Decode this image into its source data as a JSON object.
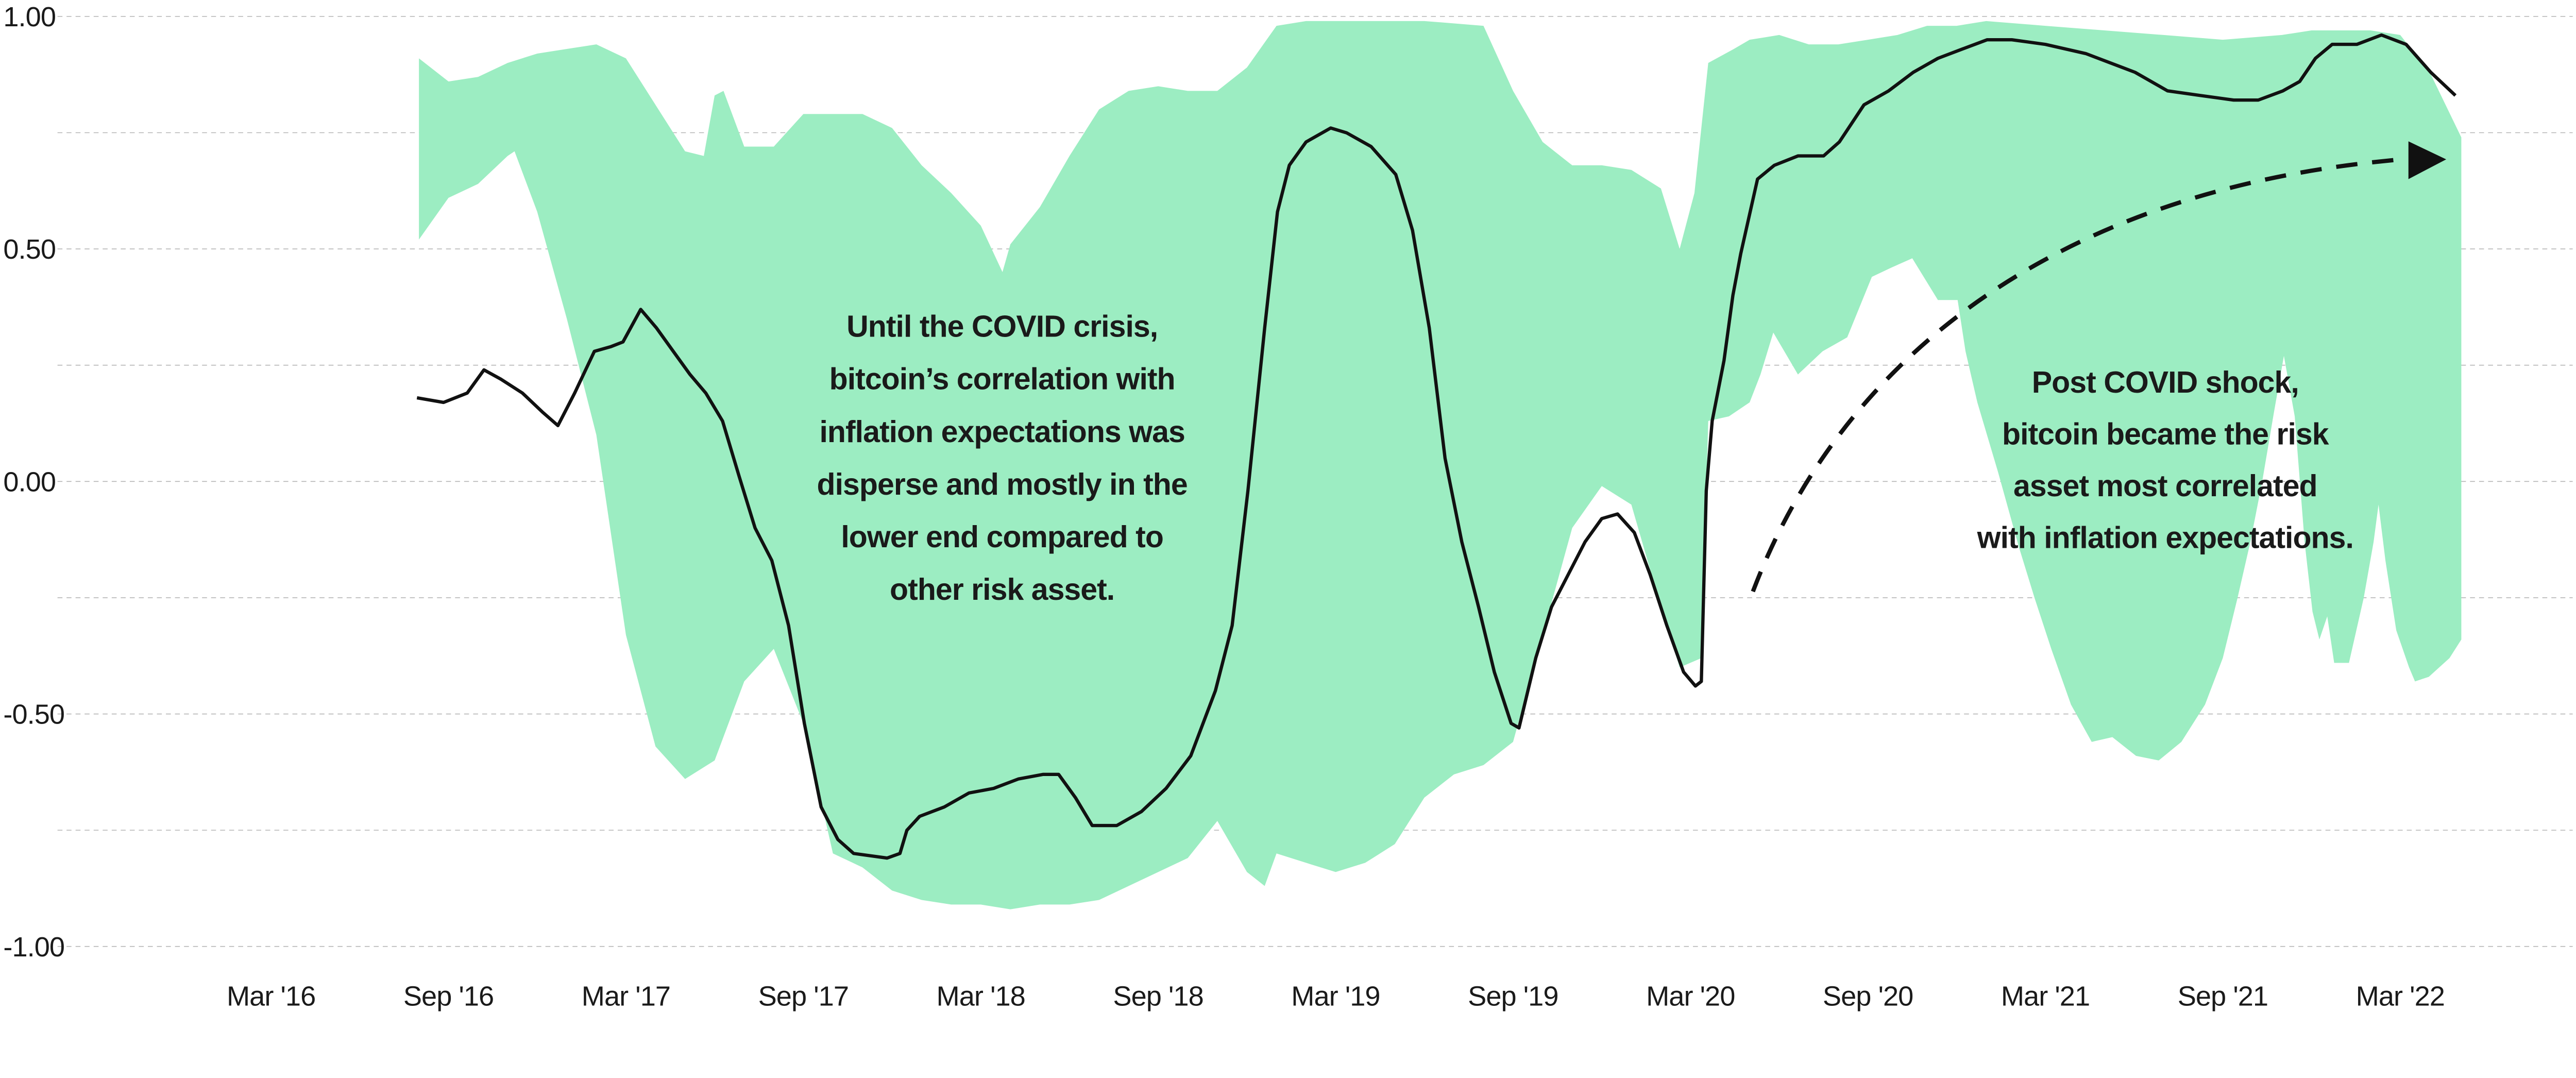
{
  "chart_data": {
    "type": "area",
    "title": "",
    "xlabel": "",
    "ylabel": "",
    "ylim": [
      -1.0,
      1.0
    ],
    "grid": true,
    "y_ticks": [
      "1.00",
      "0.50",
      "0.00",
      "-0.50",
      "-1.00"
    ],
    "y_tick_values": [
      1.0,
      0.5,
      0.0,
      -0.5,
      -1.0
    ],
    "gridline_values": [
      1.0,
      0.75,
      0.5,
      0.25,
      0.0,
      -0.25,
      -0.5,
      -0.75,
      -1.0
    ],
    "x_ticks": [
      "Mar '16",
      "Sep '16",
      "Mar '17",
      "Sep '17",
      "Mar '18",
      "Sep '18",
      "Mar '19",
      "Sep '19",
      "Mar '20",
      "Sep '20",
      "Mar '21",
      "Sep '21",
      "Mar '22"
    ],
    "x_tick_dates": [
      "2016-03-01",
      "2016-09-01",
      "2017-03-01",
      "2017-09-01",
      "2018-03-01",
      "2018-09-01",
      "2019-03-01",
      "2019-09-01",
      "2020-03-01",
      "2020-09-01",
      "2021-03-01",
      "2021-09-01",
      "2022-03-01"
    ],
    "colors": {
      "band": "#9CEDC2",
      "line": "#111111",
      "arrow": "#111111"
    },
    "band": {
      "upper": [
        [
          "2016-08-01",
          0.91
        ],
        [
          "2016-09-01",
          0.86
        ],
        [
          "2016-10-01",
          0.87
        ],
        [
          "2016-11-01",
          0.9
        ],
        [
          "2016-12-01",
          0.92
        ],
        [
          "2017-01-01",
          0.93
        ],
        [
          "2017-02-01",
          0.94
        ],
        [
          "2017-03-01",
          0.91
        ],
        [
          "2017-04-01",
          0.81
        ],
        [
          "2017-05-01",
          0.71
        ],
        [
          "2017-05-20",
          0.7
        ],
        [
          "2017-06-01",
          0.83
        ],
        [
          "2017-06-10",
          0.84
        ],
        [
          "2017-07-01",
          0.72
        ],
        [
          "2017-08-01",
          0.72
        ],
        [
          "2017-09-01",
          0.79
        ],
        [
          "2017-10-01",
          0.79
        ],
        [
          "2017-11-01",
          0.79
        ],
        [
          "2017-12-01",
          0.76
        ],
        [
          "2018-01-01",
          0.68
        ],
        [
          "2018-02-01",
          0.62
        ],
        [
          "2018-03-01",
          0.55
        ],
        [
          "2018-03-23",
          0.45
        ],
        [
          "2018-04-01",
          0.51
        ],
        [
          "2018-05-01",
          0.59
        ],
        [
          "2018-06-01",
          0.7
        ],
        [
          "2018-07-01",
          0.8
        ],
        [
          "2018-08-01",
          0.84
        ],
        [
          "2018-09-01",
          0.85
        ],
        [
          "2018-10-01",
          0.84
        ],
        [
          "2018-11-01",
          0.84
        ],
        [
          "2018-12-01",
          0.89
        ],
        [
          "2019-01-01",
          0.98
        ],
        [
          "2019-02-01",
          0.99
        ],
        [
          "2019-04-01",
          0.99
        ],
        [
          "2019-06-01",
          0.99
        ],
        [
          "2019-08-01",
          0.98
        ],
        [
          "2019-09-01",
          0.84
        ],
        [
          "2019-10-01",
          0.73
        ],
        [
          "2019-11-01",
          0.68
        ],
        [
          "2019-12-01",
          0.68
        ],
        [
          "2020-01-01",
          0.67
        ],
        [
          "2020-02-01",
          0.63
        ],
        [
          "2020-02-20",
          0.5
        ],
        [
          "2020-03-05",
          0.62
        ],
        [
          "2020-03-19",
          0.9
        ],
        [
          "2020-04-15",
          0.93
        ],
        [
          "2020-05-01",
          0.95
        ],
        [
          "2020-06-01",
          0.96
        ],
        [
          "2020-07-01",
          0.94
        ],
        [
          "2020-08-01",
          0.94
        ],
        [
          "2020-09-01",
          0.95
        ],
        [
          "2020-10-01",
          0.96
        ],
        [
          "2020-11-01",
          0.98
        ],
        [
          "2020-12-01",
          0.98
        ],
        [
          "2021-01-01",
          0.99
        ],
        [
          "2021-03-01",
          0.98
        ],
        [
          "2021-05-01",
          0.97
        ],
        [
          "2021-07-01",
          0.96
        ],
        [
          "2021-09-01",
          0.95
        ],
        [
          "2021-11-01",
          0.96
        ],
        [
          "2021-12-01",
          0.97
        ],
        [
          "2022-01-01",
          0.97
        ],
        [
          "2022-02-01",
          0.97
        ],
        [
          "2022-03-01",
          0.96
        ],
        [
          "2022-04-01",
          0.88
        ],
        [
          "2022-05-03",
          0.74
        ]
      ],
      "lower": [
        [
          "2016-08-01",
          0.52
        ],
        [
          "2016-09-01",
          0.61
        ],
        [
          "2016-10-01",
          0.64
        ],
        [
          "2016-11-01",
          0.7
        ],
        [
          "2016-11-08",
          0.71
        ],
        [
          "2016-12-01",
          0.58
        ],
        [
          "2017-01-01",
          0.35
        ],
        [
          "2017-02-01",
          0.1
        ],
        [
          "2017-03-01",
          -0.33
        ],
        [
          "2017-04-01",
          -0.57
        ],
        [
          "2017-05-01",
          -0.64
        ],
        [
          "2017-06-01",
          -0.6
        ],
        [
          "2017-07-01",
          -0.43
        ],
        [
          "2017-08-01",
          -0.36
        ],
        [
          "2017-09-01",
          -0.52
        ],
        [
          "2017-10-01",
          -0.8
        ],
        [
          "2017-11-01",
          -0.83
        ],
        [
          "2017-12-01",
          -0.88
        ],
        [
          "2018-01-01",
          -0.9
        ],
        [
          "2018-02-01",
          -0.91
        ],
        [
          "2018-03-01",
          -0.91
        ],
        [
          "2018-04-01",
          -0.92
        ],
        [
          "2018-05-01",
          -0.91
        ],
        [
          "2018-06-01",
          -0.91
        ],
        [
          "2018-07-01",
          -0.9
        ],
        [
          "2018-08-01",
          -0.87
        ],
        [
          "2018-09-01",
          -0.84
        ],
        [
          "2018-10-01",
          -0.81
        ],
        [
          "2018-11-01",
          -0.73
        ],
        [
          "2018-12-01",
          -0.84
        ],
        [
          "2018-12-19",
          -0.87
        ],
        [
          "2019-01-01",
          -0.8
        ],
        [
          "2019-02-01",
          -0.82
        ],
        [
          "2019-03-01",
          -0.84
        ],
        [
          "2019-04-01",
          -0.82
        ],
        [
          "2019-05-01",
          -0.78
        ],
        [
          "2019-06-01",
          -0.68
        ],
        [
          "2019-07-01",
          -0.63
        ],
        [
          "2019-08-01",
          -0.61
        ],
        [
          "2019-09-01",
          -0.56
        ],
        [
          "2019-10-01",
          -0.33
        ],
        [
          "2019-11-01",
          -0.1
        ],
        [
          "2019-12-01",
          -0.01
        ],
        [
          "2020-01-01",
          -0.05
        ],
        [
          "2020-02-01",
          -0.27
        ],
        [
          "2020-02-20",
          -0.4
        ],
        [
          "2020-03-12",
          -0.38
        ],
        [
          "2020-03-19",
          0.13
        ],
        [
          "2020-04-10",
          0.14
        ],
        [
          "2020-05-01",
          0.17
        ],
        [
          "2020-05-12",
          0.23
        ],
        [
          "2020-05-25",
          0.32
        ],
        [
          "2020-06-20",
          0.23
        ],
        [
          "2020-07-15",
          0.28
        ],
        [
          "2020-08-10",
          0.31
        ],
        [
          "2020-09-05",
          0.44
        ],
        [
          "2020-09-25",
          0.46
        ],
        [
          "2020-10-16",
          0.48
        ],
        [
          "2020-11-12",
          0.39
        ],
        [
          "2020-12-02",
          0.39
        ],
        [
          "2020-12-10",
          0.28
        ],
        [
          "2020-12-22",
          0.17
        ],
        [
          "2021-01-13",
          0.02
        ],
        [
          "2021-02-04",
          -0.14
        ],
        [
          "2021-02-20",
          -0.25
        ],
        [
          "2021-03-07",
          -0.36
        ],
        [
          "2021-03-27",
          -0.48
        ],
        [
          "2021-04-18",
          -0.56
        ],
        [
          "2021-05-09",
          -0.55
        ],
        [
          "2021-06-03",
          -0.59
        ],
        [
          "2021-06-26",
          -0.6
        ],
        [
          "2021-07-19",
          -0.56
        ],
        [
          "2021-08-13",
          -0.48
        ],
        [
          "2021-09-01",
          -0.38
        ],
        [
          "2021-09-16",
          -0.25
        ],
        [
          "2021-09-29",
          -0.13
        ],
        [
          "2021-10-11",
          0.0
        ],
        [
          "2021-10-23",
          0.15
        ],
        [
          "2021-11-03",
          0.27
        ],
        [
          "2021-11-14",
          0.14
        ],
        [
          "2021-11-24",
          -0.13
        ],
        [
          "2021-12-02",
          -0.28
        ],
        [
          "2021-12-09",
          -0.34
        ],
        [
          "2021-12-17",
          -0.29
        ],
        [
          "2021-12-24",
          -0.39
        ],
        [
          "2022-01-09",
          -0.39
        ],
        [
          "2022-01-24",
          -0.25
        ],
        [
          "2022-02-04",
          -0.13
        ],
        [
          "2022-02-09",
          -0.05
        ],
        [
          "2022-02-16",
          -0.17
        ],
        [
          "2022-02-27",
          -0.32
        ],
        [
          "2022-03-10",
          -0.4
        ],
        [
          "2022-03-16",
          -0.43
        ],
        [
          "2022-03-30",
          -0.42
        ],
        [
          "2022-04-21",
          -0.38
        ],
        [
          "2022-05-03",
          -0.34
        ]
      ]
    },
    "line": [
      [
        "2016-07-29",
        0.18
      ],
      [
        "2016-08-26",
        0.17
      ],
      [
        "2016-09-20",
        0.19
      ],
      [
        "2016-10-07",
        0.24
      ],
      [
        "2016-10-24",
        0.22
      ],
      [
        "2016-11-16",
        0.19
      ],
      [
        "2016-12-06",
        0.15
      ],
      [
        "2016-12-22",
        0.12
      ],
      [
        "2017-01-09",
        0.19
      ],
      [
        "2017-01-29",
        0.28
      ],
      [
        "2017-02-16",
        0.29
      ],
      [
        "2017-02-28",
        0.3
      ],
      [
        "2017-03-16",
        0.37
      ],
      [
        "2017-04-02",
        0.33
      ],
      [
        "2017-04-19",
        0.28
      ],
      [
        "2017-05-06",
        0.23
      ],
      [
        "2017-05-22",
        0.19
      ],
      [
        "2017-06-09",
        0.13
      ],
      [
        "2017-06-26",
        0.01
      ],
      [
        "2017-07-12",
        -0.1
      ],
      [
        "2017-07-29",
        -0.17
      ],
      [
        "2017-08-16",
        -0.31
      ],
      [
        "2017-09-02",
        -0.52
      ],
      [
        "2017-09-19",
        -0.7
      ],
      [
        "2017-10-06",
        -0.77
      ],
      [
        "2017-10-22",
        -0.8
      ],
      [
        "2017-11-26",
        -0.81
      ],
      [
        "2017-12-09",
        -0.8
      ],
      [
        "2017-12-16",
        -0.75
      ],
      [
        "2017-12-29",
        -0.72
      ],
      [
        "2018-01-24",
        -0.7
      ],
      [
        "2018-02-19",
        -0.67
      ],
      [
        "2018-03-14",
        -0.66
      ],
      [
        "2018-04-09",
        -0.64
      ],
      [
        "2018-05-04",
        -0.63
      ],
      [
        "2018-05-20",
        -0.63
      ],
      [
        "2018-06-07",
        -0.68
      ],
      [
        "2018-06-24",
        -0.74
      ],
      [
        "2018-07-19",
        -0.74
      ],
      [
        "2018-08-14",
        -0.71
      ],
      [
        "2018-09-09",
        -0.66
      ],
      [
        "2018-10-04",
        -0.59
      ],
      [
        "2018-10-29",
        -0.45
      ],
      [
        "2018-11-16",
        -0.31
      ],
      [
        "2018-12-02",
        -0.02
      ],
      [
        "2018-12-19",
        0.33
      ],
      [
        "2019-01-02",
        0.58
      ],
      [
        "2019-01-14",
        0.68
      ],
      [
        "2019-02-01",
        0.73
      ],
      [
        "2019-02-26",
        0.76
      ],
      [
        "2019-03-12",
        0.75
      ],
      [
        "2019-04-07",
        0.72
      ],
      [
        "2019-05-02",
        0.66
      ],
      [
        "2019-05-19",
        0.54
      ],
      [
        "2019-06-06",
        0.33
      ],
      [
        "2019-06-22",
        0.05
      ],
      [
        "2019-07-09",
        -0.13
      ],
      [
        "2019-07-26",
        -0.27
      ],
      [
        "2019-08-12",
        -0.41
      ],
      [
        "2019-08-29",
        -0.52
      ],
      [
        "2019-09-07",
        -0.53
      ],
      [
        "2019-09-24",
        -0.38
      ],
      [
        "2019-10-10",
        -0.27
      ],
      [
        "2019-10-27",
        -0.2
      ],
      [
        "2019-11-14",
        -0.13
      ],
      [
        "2019-12-01",
        -0.08
      ],
      [
        "2019-12-17",
        -0.07
      ],
      [
        "2020-01-04",
        -0.11
      ],
      [
        "2020-01-20",
        -0.2
      ],
      [
        "2020-02-07",
        -0.31
      ],
      [
        "2020-02-24",
        -0.41
      ],
      [
        "2020-03-06",
        -0.44
      ],
      [
        "2020-03-12",
        -0.43
      ],
      [
        "2020-03-17",
        -0.02
      ],
      [
        "2020-03-23",
        0.13
      ],
      [
        "2020-04-05",
        0.26
      ],
      [
        "2020-04-14",
        0.4
      ],
      [
        "2020-04-22",
        0.49
      ],
      [
        "2020-05-09",
        0.65
      ],
      [
        "2020-05-26",
        0.68
      ],
      [
        "2020-06-20",
        0.7
      ],
      [
        "2020-07-16",
        0.7
      ],
      [
        "2020-08-02",
        0.73
      ],
      [
        "2020-08-27",
        0.81
      ],
      [
        "2020-09-22",
        0.84
      ],
      [
        "2020-10-17",
        0.88
      ],
      [
        "2020-11-12",
        0.91
      ],
      [
        "2020-12-07",
        0.93
      ],
      [
        "2021-01-02",
        0.95
      ],
      [
        "2021-01-27",
        0.95
      ],
      [
        "2021-03-01",
        0.94
      ],
      [
        "2021-04-12",
        0.92
      ],
      [
        "2021-06-02",
        0.88
      ],
      [
        "2021-07-05",
        0.84
      ],
      [
        "2021-08-08",
        0.83
      ],
      [
        "2021-09-12",
        0.82
      ],
      [
        "2021-10-07",
        0.82
      ],
      [
        "2021-11-02",
        0.84
      ],
      [
        "2021-11-19",
        0.86
      ],
      [
        "2021-12-05",
        0.91
      ],
      [
        "2021-12-22",
        0.94
      ],
      [
        "2022-01-17",
        0.94
      ],
      [
        "2022-02-12",
        0.96
      ],
      [
        "2022-03-07",
        0.94
      ],
      [
        "2022-04-02",
        0.88
      ],
      [
        "2022-04-27",
        0.83
      ]
    ],
    "annotations": [
      {
        "lines": [
          "Until the COVID crisis,",
          "bitcoin’s correlation with",
          "inflation expectations was",
          "disperse and mostly in the",
          "lower end compared to",
          "other risk asset."
        ]
      },
      {
        "lines": [
          "Post COVID shock,",
          "bitcoin became the risk",
          "asset most correlated",
          "with inflation expectations."
        ]
      }
    ]
  }
}
